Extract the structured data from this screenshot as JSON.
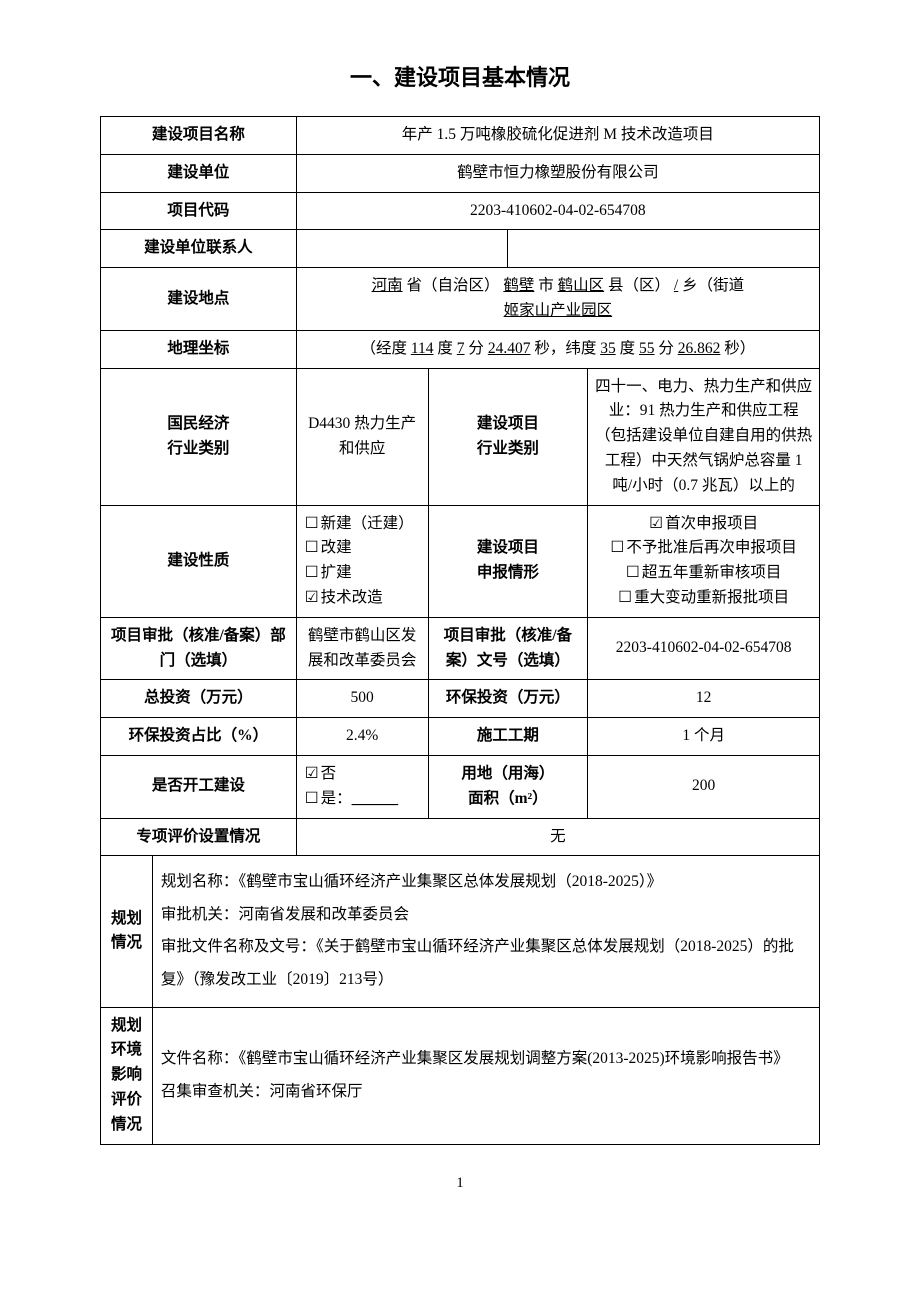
{
  "title": "一、建设项目基本情况",
  "rows": {
    "project_name_label": "建设项目名称",
    "project_name": "年产 1.5 万吨橡胶硫化促进剂 M 技术改造项目",
    "build_unit_label": "建设单位",
    "build_unit": "鹤壁市恒力橡塑股份有限公司",
    "project_code_label": "项目代码",
    "project_code": "2203-410602-04-02-654708",
    "contact_label": "建设单位联系人",
    "contact1": "",
    "contact2": "",
    "location_label": "建设地点",
    "loc_province": "河南",
    "loc_city": "鹤壁",
    "loc_county": "鹤山区",
    "loc_township": "/",
    "loc_street_suffix": "（街道",
    "loc_park": "姬家山产业园区",
    "geo_label": "地理坐标",
    "geo_lon_deg": "114",
    "geo_lon_min": "7",
    "geo_lon_sec": "24.407",
    "geo_lat_deg": "35",
    "geo_lat_min": "55",
    "geo_lat_sec": "26.862",
    "nace_label": "国民经济\n行业类别",
    "nace": "D4430 热力生产和供应",
    "proj_ind_label": "建设项目\n行业类别",
    "proj_ind": "四十一、电力、热力生产和供应业：91 热力生产和供应工程（包括建设单位自建自用的供热工程）中天然气锅炉总容量 1 吨/小时（0.7 兆瓦）以上的",
    "nature_label": "建设性质",
    "nature_1": "新建（迁建）",
    "nature_2": "改建",
    "nature_3": "扩建",
    "nature_4": "技术改造",
    "declare_label": "建设项目\n申报情形",
    "declare_1": "首次申报项目",
    "declare_2": "不予批准后再次申报项目",
    "declare_3": "超五年重新审核项目",
    "declare_4": "重大变动重新报批项目",
    "approve_dept_label": "项目审批（核准/备案）部门（选填）",
    "approve_dept": "鹤壁市鹤山区发展和改革委员会",
    "approve_no_label": "项目审批（核准/备案）文号（选填）",
    "approve_no": "2203-410602-04-02-654708",
    "total_inv_label": "总投资（万元）",
    "total_inv": "500",
    "env_inv_label": "环保投资（万元）",
    "env_inv": "12",
    "env_ratio_label": "环保投资占比（%）",
    "env_ratio": "2.4%",
    "period_label": "施工工期",
    "period": "1 个月",
    "started_label": "是否开工建设",
    "started_no": "否",
    "started_yes_prefix": "是：",
    "started_yes_blank": "＿＿＿",
    "land_label": "用地（用海）\n面积（m²）",
    "land": "200",
    "special_label": "专项评价设置情况",
    "special": "无",
    "plan_label": "规划\n情况",
    "plan_name_prefix": "规划名称：",
    "plan_name": "《鹤壁市宝山循环经济产业集聚区总体发展规划（2018-2025）》",
    "plan_auth_prefix": "审批机关：",
    "plan_auth": "河南省发展和改革委员会",
    "plan_doc_prefix": "审批文件名称及文号：",
    "plan_doc": "《关于鹤壁市宝山循环经济产业集聚区总体发展规划（2018-2025）的批复》（豫发改工业〔2019〕213号）",
    "eia_label": "规划\n环境\n影响\n评价\n情况",
    "eia_name_prefix": "文件名称：",
    "eia_name": "《鹤壁市宝山循环经济产业集聚区发展规划调整方案(2013-2025)环境影响报告书》",
    "eia_auth_prefix": "召集审查机关：",
    "eia_auth": "河南省环保厅"
  },
  "checkbox": {
    "checked": "☑",
    "unchecked": "☐"
  },
  "page_number": "1"
}
